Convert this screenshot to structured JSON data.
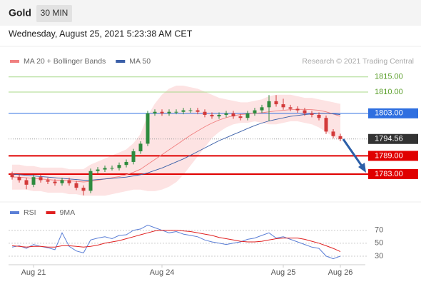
{
  "header": {
    "title": "Gold",
    "timeframe": "30 MIN",
    "timestamp": "Wednesday, August 25, 2021 5:23:38 AM CET",
    "credit": "Research © 2021 Trading Central"
  },
  "chart_data": [
    {
      "type": "candlestick",
      "up_color": "#2e8b3e",
      "down_color": "#d33a3a",
      "open": [
        1783,
        1782,
        1781,
        1779.5,
        1782,
        1781,
        1780.5,
        1780,
        1781,
        1780,
        1778.5,
        1777.5,
        1784,
        1784.5,
        1785,
        1785,
        1786,
        1787,
        1790.5,
        1793,
        1803,
        1803.5,
        1803,
        1803.5,
        1803.5,
        1804,
        1804,
        1803.5,
        1802.5,
        1802,
        1802.5,
        1803,
        1802,
        1801.5,
        1803,
        1804,
        1805,
        1807,
        1806,
        1805,
        1804.5,
        1804,
        1803,
        1802.5,
        1801.5,
        1797,
        1795.5
      ],
      "high": [
        1783.8,
        1782.8,
        1781.8,
        1782.8,
        1782.8,
        1781.8,
        1781.3,
        1781.8,
        1781.8,
        1780.8,
        1779.3,
        1784.8,
        1785.3,
        1785.8,
        1785.8,
        1786.8,
        1787.8,
        1791.3,
        1793.8,
        1803.8,
        1804.3,
        1804.3,
        1804.3,
        1804.3,
        1804.8,
        1804.8,
        1804.8,
        1804.3,
        1803.3,
        1803.3,
        1803.8,
        1803.8,
        1802.8,
        1803.8,
        1804.8,
        1805.8,
        1809,
        1809,
        1807.8,
        1805.8,
        1805.3,
        1804.8,
        1803.8,
        1803.3,
        1802.3,
        1797.8,
        1796.3
      ],
      "low": [
        1781.2,
        1780.2,
        1778,
        1778.7,
        1780.2,
        1779.7,
        1779.2,
        1779.2,
        1779.2,
        1777.7,
        1776,
        1776.7,
        1783.2,
        1783.7,
        1784.2,
        1784.2,
        1785.2,
        1786.2,
        1789.7,
        1792.2,
        1802.2,
        1802.2,
        1802.2,
        1802.7,
        1802.7,
        1803.2,
        1802.7,
        1801.7,
        1801.2,
        1801.2,
        1801.7,
        1801.2,
        1800.7,
        1800.7,
        1802.2,
        1803.2,
        1800.5,
        1805.2,
        1804.2,
        1803.7,
        1803.2,
        1802.2,
        1801.7,
        1800.7,
        1796.2,
        1794.7,
        1793.8
      ],
      "close": [
        1782,
        1781,
        1779.5,
        1782,
        1781,
        1780.5,
        1780,
        1781,
        1780,
        1778.5,
        1777.5,
        1784,
        1784.5,
        1785,
        1785,
        1786,
        1787,
        1790.5,
        1793,
        1803,
        1803.5,
        1803,
        1803.5,
        1803.5,
        1804,
        1804,
        1803.5,
        1802.5,
        1802,
        1802.5,
        1803,
        1802,
        1801.5,
        1803,
        1804,
        1805,
        1807,
        1806,
        1805,
        1804.5,
        1804,
        1803,
        1802.5,
        1801.5,
        1797,
        1795.5,
        1794.56
      ],
      "series": [
        {
          "name": "MA 20 + Bollinger Bands",
          "color": "#f08080",
          "band_color": "#fde3e3",
          "values": [
            1782,
            1782,
            1781.8,
            1781.6,
            1781.4,
            1781.2,
            1781,
            1781,
            1780.8,
            1780.6,
            1780.4,
            1780.6,
            1781,
            1781.4,
            1781.8,
            1782.2,
            1782.8,
            1783.6,
            1784.6,
            1786.2,
            1787.8,
            1789.4,
            1791,
            1792.6,
            1794.2,
            1795.8,
            1797.2,
            1798.6,
            1799.8,
            1800.8,
            1801.6,
            1802.2,
            1802.6,
            1802.8,
            1803,
            1803.2,
            1803.5,
            1803.8,
            1804,
            1804.2,
            1804.3,
            1804.3,
            1804.2,
            1804,
            1803.5,
            1802.8,
            1802
          ],
          "upper": [
            1786,
            1786,
            1785.5,
            1785.5,
            1785,
            1785,
            1785,
            1785,
            1784.5,
            1784.5,
            1784.5,
            1786,
            1787,
            1788,
            1789,
            1790,
            1791,
            1793,
            1796,
            1802,
            1806,
            1809,
            1811,
            1812,
            1812,
            1811.5,
            1811,
            1810,
            1809,
            1808,
            1807.5,
            1807,
            1806.5,
            1806.5,
            1807,
            1807.5,
            1808.5,
            1809,
            1809,
            1809,
            1808.5,
            1808,
            1808,
            1807.5,
            1807,
            1806.5,
            1806
          ],
          "lower": [
            1778,
            1778,
            1778,
            1777.5,
            1777.5,
            1777,
            1777,
            1777,
            1776.5,
            1776.5,
            1776,
            1776,
            1776,
            1776,
            1776.5,
            1777,
            1777.5,
            1778,
            1778,
            1777.5,
            1777.5,
            1778,
            1779,
            1780.5,
            1783,
            1786,
            1789,
            1792,
            1795,
            1797,
            1798.5,
            1799.5,
            1800,
            1800,
            1800.5,
            1800,
            1799.5,
            1799.5,
            1800,
            1800.5,
            1800.5,
            1800,
            1799.5,
            1798.5,
            1797,
            1795.5,
            1794
          ]
        },
        {
          "name": "MA 50",
          "color": "#3a5fa8",
          "values": [
            1783,
            1782.8,
            1782.6,
            1782.4,
            1782.2,
            1782,
            1781.8,
            1781.6,
            1781.4,
            1781.2,
            1781,
            1781,
            1781.2,
            1781.4,
            1781.6,
            1781.8,
            1782,
            1782.4,
            1782.8,
            1783.4,
            1784.2,
            1785,
            1786,
            1787,
            1788,
            1789.2,
            1790.4,
            1791.6,
            1792.8,
            1794,
            1795,
            1796,
            1797,
            1798,
            1799,
            1799.8,
            1800.5,
            1801,
            1801.5,
            1802,
            1802.3,
            1802.6,
            1802.8,
            1803,
            1803,
            1802.8,
            1802.6
          ]
        }
      ],
      "levels": [
        {
          "value": 1815,
          "label": "1815.00",
          "color": "#a8d88a",
          "style": "text"
        },
        {
          "value": 1810,
          "label": "1810.00",
          "color": "#a8d88a",
          "style": "text"
        },
        {
          "value": 1803,
          "label": "1803.00",
          "color": "#2f6fe0",
          "style": "box"
        },
        {
          "value": 1794.56,
          "label": "1794.56",
          "color": "#333333",
          "style": "current"
        },
        {
          "value": 1789,
          "label": "1789.00",
          "color": "#e00000",
          "style": "box"
        },
        {
          "value": 1783,
          "label": "1783.00",
          "color": "#e00000",
          "style": "box"
        }
      ],
      "xlim": [
        -0.5,
        49.5
      ],
      "ylim": [
        1775,
        1818
      ]
    },
    {
      "type": "line",
      "series": [
        {
          "name": "RSI",
          "color": "#5b7fd6",
          "values": [
            44,
            46,
            42,
            48,
            45,
            43,
            40,
            66,
            45,
            38,
            35,
            55,
            58,
            60,
            57,
            62,
            63,
            70,
            72,
            78,
            74,
            70,
            66,
            68,
            64,
            62,
            60,
            55,
            52,
            50,
            48,
            50,
            52,
            56,
            58,
            62,
            66,
            58,
            60,
            56,
            52,
            48,
            44,
            42,
            30,
            26,
            30
          ]
        },
        {
          "name": "9MA",
          "color": "#e02020",
          "values": [
            46,
            45,
            44,
            45,
            45,
            44,
            44,
            46,
            46,
            45,
            44,
            45,
            47,
            50,
            52,
            54,
            57,
            60,
            63,
            66,
            69,
            70,
            70,
            70,
            69,
            68,
            66,
            64,
            62,
            59,
            57,
            55,
            53,
            52,
            52,
            53,
            55,
            57,
            58,
            58,
            58,
            56,
            53,
            50,
            46,
            42,
            37
          ]
        }
      ],
      "xlim": [
        -0.5,
        49.5
      ],
      "xticks": [
        {
          "value": 3,
          "label": "Aug 21"
        },
        {
          "value": 21,
          "label": "Aug 24"
        },
        {
          "value": 38,
          "label": "Aug 25"
        },
        {
          "value": 46,
          "label": "Aug 26"
        }
      ],
      "ylim": [
        20,
        84
      ],
      "yticks": [
        30,
        50,
        70
      ],
      "grid": true
    }
  ]
}
